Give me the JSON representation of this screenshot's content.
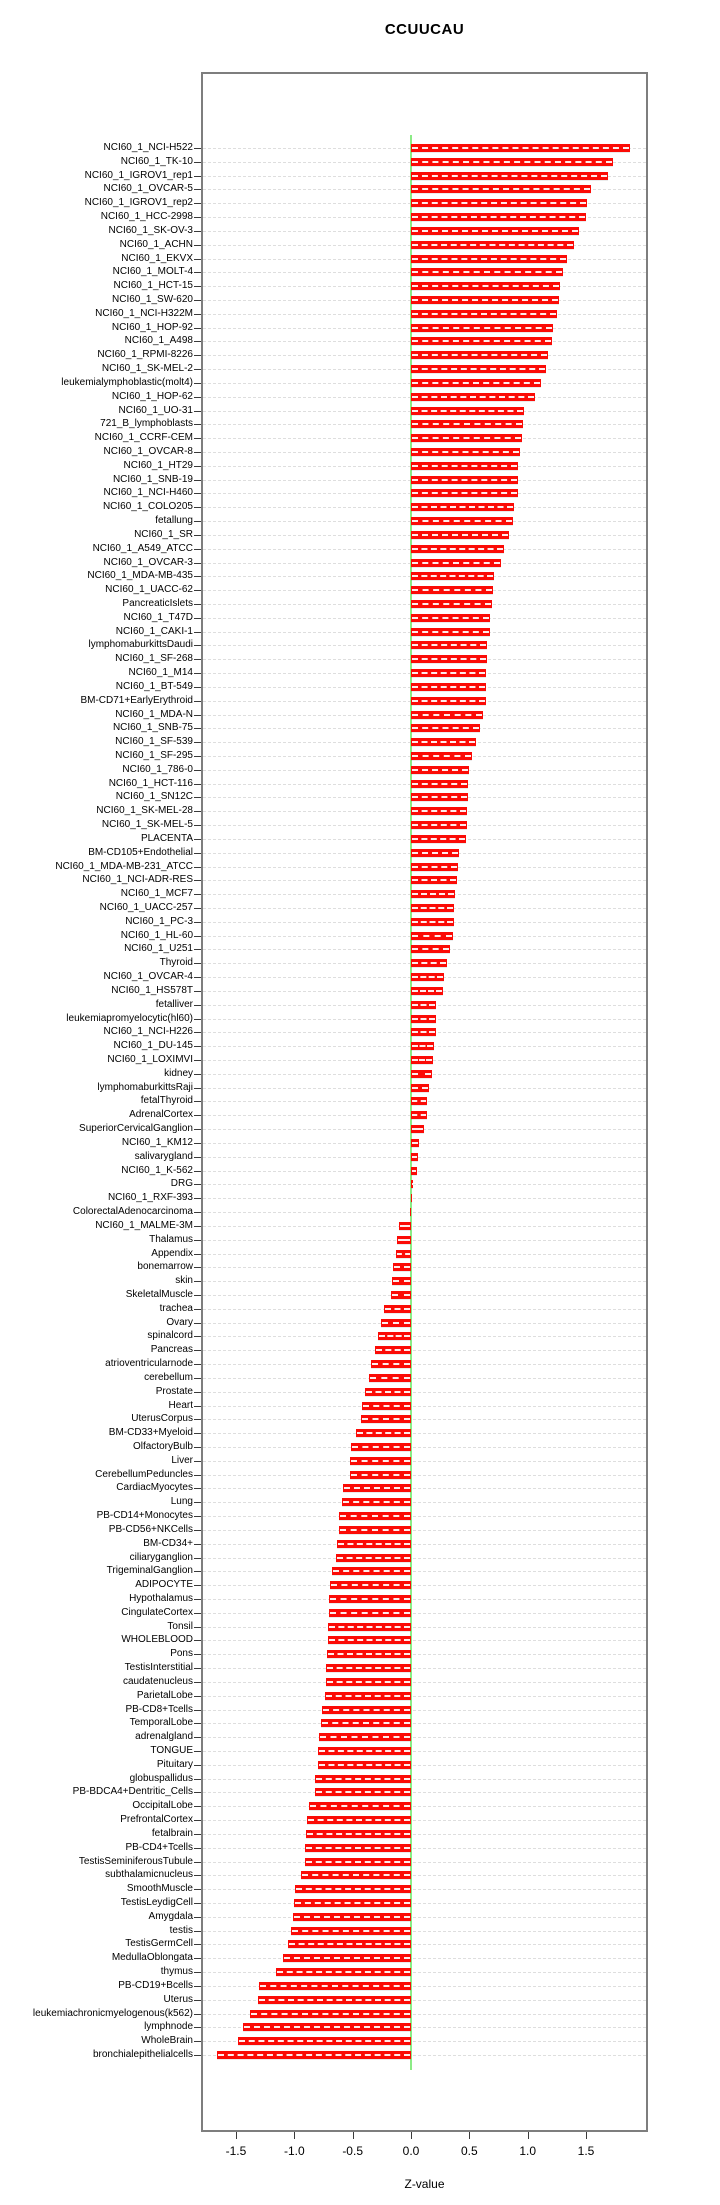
{
  "chart_data": {
    "type": "bar",
    "orientation": "horizontal",
    "title": "CCUUCAU",
    "xlabel": "Z-value",
    "x_tick_labels": [
      "-1.5",
      "-1.0",
      "-0.5",
      "0.0",
      "0.5",
      "1.0",
      "1.5"
    ],
    "x_tick_values": [
      -1.5,
      -1.0,
      -0.5,
      0.0,
      0.5,
      1.0,
      1.5
    ],
    "xlim": [
      -1.8,
      2.03
    ],
    "grid": "dashed-horizontal-per-category",
    "legend": "none",
    "bar_color": "#fb0b06",
    "zero_line_color": "#8ceb86",
    "categories": [
      "NCI60_1_NCI-H522",
      "NCI60_1_TK-10",
      "NCI60_1_IGROV1_rep1",
      "NCI60_1_OVCAR-5",
      "NCI60_1_IGROV1_rep2",
      "NCI60_1_HCC-2998",
      "NCI60_1_SK-OV-3",
      "NCI60_1_ACHN",
      "NCI60_1_EKVX",
      "NCI60_1_MOLT-4",
      "NCI60_1_HCT-15",
      "NCI60_1_SW-620",
      "NCI60_1_NCI-H322M",
      "NCI60_1_HOP-92",
      "NCI60_1_A498",
      "NCI60_1_RPMI-8226",
      "NCI60_1_SK-MEL-2",
      "leukemialymphoblastic(molt4)",
      "NCI60_1_HOP-62",
      "NCI60_1_UO-31",
      "721_B_lymphoblasts",
      "NCI60_1_CCRF-CEM",
      "NCI60_1_OVCAR-8",
      "NCI60_1_HT29",
      "NCI60_1_SNB-19",
      "NCI60_1_NCI-H460",
      "NCI60_1_COLO205",
      "fetallung",
      "NCI60_1_SR",
      "NCI60_1_A549_ATCC",
      "NCI60_1_OVCAR-3",
      "NCI60_1_MDA-MB-435",
      "NCI60_1_UACC-62",
      "PancreaticIslets",
      "NCI60_1_T47D",
      "NCI60_1_CAKI-1",
      "lymphomaburkittsDaudi",
      "NCI60_1_SF-268",
      "NCI60_1_M14",
      "NCI60_1_BT-549",
      "BM-CD71+EarlyErythroid",
      "NCI60_1_MDA-N",
      "NCI60_1_SNB-75",
      "NCI60_1_SF-539",
      "NCI60_1_SF-295",
      "NCI60_1_786-0",
      "NCI60_1_HCT-116",
      "NCI60_1_SN12C",
      "NCI60_1_SK-MEL-28",
      "NCI60_1_SK-MEL-5",
      "PLACENTA",
      "BM-CD105+Endothelial",
      "NCI60_1_MDA-MB-231_ATCC",
      "NCI60_1_NCI-ADR-RES",
      "NCI60_1_MCF7",
      "NCI60_1_UACC-257",
      "NCI60_1_PC-3",
      "NCI60_1_HL-60",
      "NCI60_1_U251",
      "Thyroid",
      "NCI60_1_OVCAR-4",
      "NCI60_1_HS578T",
      "fetalliver",
      "leukemiapromyelocytic(hl60)",
      "NCI60_1_NCI-H226",
      "NCI60_1_DU-145",
      "NCI60_1_LOXIMVI",
      "kidney",
      "lymphomaburkittsRaji",
      "fetalThyroid",
      "AdrenalCortex",
      "SuperiorCervicalGanglion",
      "NCI60_1_KM12",
      "salivarygland",
      "NCI60_1_K-562",
      "DRG",
      "NCI60_1_RXF-393",
      "ColorectalAdenocarcinoma",
      "NCI60_1_MALME-3M",
      "Thalamus",
      "Appendix",
      "bonemarrow",
      "skin",
      "SkeletalMuscle",
      "trachea",
      "Ovary",
      "spinalcord",
      "Pancreas",
      "atrioventricularnode",
      "cerebellum",
      "Prostate",
      "Heart",
      "UterusCorpus",
      "BM-CD33+Myeloid",
      "OlfactoryBulb",
      "Liver",
      "CerebellumPeduncles",
      "CardiacMyocytes",
      "Lung",
      "PB-CD14+Monocytes",
      "PB-CD56+NKCells",
      "BM-CD34+",
      "ciliaryganglion",
      "TrigeminalGanglion",
      "ADIPOCYTE",
      "Hypothalamus",
      "CingulateCortex",
      "Tonsil",
      "WHOLEBLOOD",
      "Pons",
      "TestisInterstitial",
      "caudatenucleus",
      "ParietalLobe",
      "PB-CD8+Tcells",
      "TemporalLobe",
      "adrenalgland",
      "TONGUE",
      "Pituitary",
      "globuspallidus",
      "PB-BDCA4+Dentritic_Cells",
      "OccipitalLobe",
      "PrefrontalCortex",
      "fetalbrain",
      "PB-CD4+Tcells",
      "TestisSeminiferousTubule",
      "subthalamicnucleus",
      "SmoothMuscle",
      "TestisLeydigCell",
      "Amygdala",
      "testis",
      "TestisGermCell",
      "MedullaOblongata",
      "thymus",
      "PB-CD19+Bcells",
      "Uterus",
      "leukemiachronicmyelogenous(k562)",
      "lymphnode",
      "WholeBrain",
      "bronchialepithelialcells"
    ],
    "values": [
      1.88,
      1.73,
      1.69,
      1.54,
      1.51,
      1.5,
      1.44,
      1.4,
      1.34,
      1.3,
      1.28,
      1.27,
      1.25,
      1.22,
      1.21,
      1.17,
      1.16,
      1.11,
      1.06,
      0.97,
      0.96,
      0.95,
      0.93,
      0.92,
      0.92,
      0.92,
      0.88,
      0.87,
      0.84,
      0.8,
      0.77,
      0.71,
      0.7,
      0.69,
      0.68,
      0.68,
      0.65,
      0.65,
      0.64,
      0.64,
      0.64,
      0.62,
      0.59,
      0.56,
      0.52,
      0.5,
      0.49,
      0.49,
      0.48,
      0.48,
      0.47,
      0.41,
      0.4,
      0.39,
      0.38,
      0.37,
      0.37,
      0.36,
      0.33,
      0.31,
      0.28,
      0.27,
      0.21,
      0.21,
      0.21,
      0.2,
      0.19,
      0.18,
      0.15,
      0.14,
      0.14,
      0.11,
      0.07,
      0.06,
      0.05,
      0.02,
      0.01,
      -0.01,
      -0.1,
      -0.12,
      -0.13,
      -0.15,
      -0.16,
      -0.17,
      -0.23,
      -0.26,
      -0.28,
      -0.31,
      -0.34,
      -0.36,
      -0.39,
      -0.42,
      -0.43,
      -0.47,
      -0.51,
      -0.52,
      -0.52,
      -0.58,
      -0.59,
      -0.62,
      -0.62,
      -0.63,
      -0.64,
      -0.68,
      -0.69,
      -0.7,
      -0.7,
      -0.71,
      -0.71,
      -0.72,
      -0.73,
      -0.73,
      -0.74,
      -0.76,
      -0.77,
      -0.79,
      -0.8,
      -0.8,
      -0.82,
      -0.82,
      -0.87,
      -0.89,
      -0.9,
      -0.91,
      -0.91,
      -0.94,
      -0.99,
      -1.0,
      -1.01,
      -1.03,
      -1.05,
      -1.1,
      -1.16,
      -1.3,
      -1.31,
      -1.38,
      -1.44,
      -1.48,
      -1.66
    ]
  }
}
